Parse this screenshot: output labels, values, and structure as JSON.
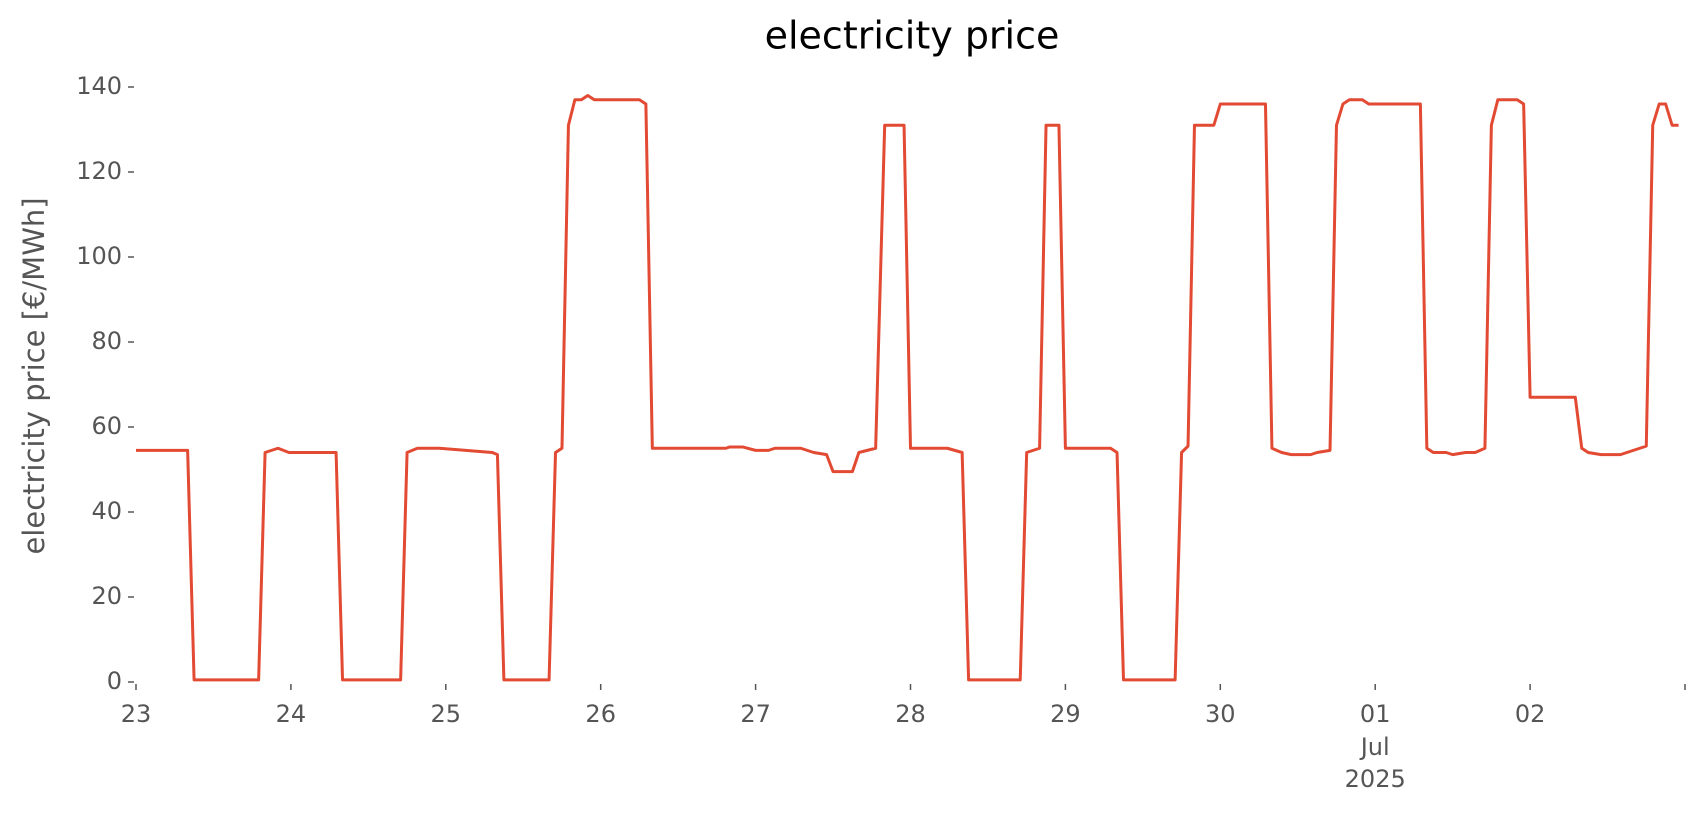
{
  "chart_data": {
    "type": "line",
    "title": "electricity price",
    "ylabel": "electricity price [€/MWh]",
    "color": "#e24a33",
    "x": [
      0,
      8,
      9,
      19,
      20,
      22,
      23.7,
      31,
      32,
      41,
      42,
      43.6,
      47,
      55.2,
      56,
      57,
      64,
      65,
      66,
      67,
      68,
      69,
      70,
      71,
      78,
      79,
      80,
      91.4,
      92,
      94,
      96,
      98,
      99,
      103,
      105,
      107,
      108,
      111,
      112,
      114.6,
      116,
      119,
      120,
      125.7,
      128,
      129,
      137,
      138,
      140,
      141,
      143,
      144,
      151,
      152,
      153,
      161,
      162,
      163,
      164,
      167,
      168,
      175,
      176,
      177.5,
      179,
      182,
      183,
      185,
      186,
      187,
      188,
      190,
      191,
      199,
      200,
      201,
      203,
      204,
      206,
      207.5,
      209,
      210,
      211,
      214,
      215,
      216,
      223,
      224,
      225,
      227,
      230,
      232,
      234,
      235,
      236,
      237,
      238,
      239
    ],
    "values": [
      54.5,
      54.5,
      0.5,
      0.5,
      54,
      55,
      54,
      54,
      0.5,
      0.5,
      54,
      55,
      55,
      54,
      53.5,
      0.5,
      0.5,
      54,
      55,
      131,
      137,
      137,
      138,
      137,
      137,
      136,
      55,
      55,
      55.3,
      55.3,
      54.5,
      54.5,
      55,
      55,
      54,
      53.5,
      49.5,
      49.5,
      54,
      55,
      131,
      131,
      55,
      55,
      54,
      0.5,
      0.5,
      54,
      55,
      131,
      131,
      55,
      55,
      54,
      0.5,
      0.5,
      54,
      55.5,
      131,
      131,
      136,
      136,
      55,
      54,
      53.5,
      53.5,
      54,
      54.5,
      131,
      136,
      137,
      137,
      136,
      136,
      55,
      54,
      54,
      53.5,
      54,
      54,
      55,
      131,
      137,
      137,
      136,
      67,
      67,
      55,
      54,
      53.5,
      53.5,
      54.5,
      55.5,
      131,
      136,
      136,
      131,
      131
    ],
    "xlim": [
      0,
      240
    ],
    "xticks": [
      {
        "value": 0,
        "label": "23"
      },
      {
        "value": 24,
        "label": "24"
      },
      {
        "value": 48,
        "label": "25"
      },
      {
        "value": 72,
        "label": "26"
      },
      {
        "value": 96,
        "label": "27"
      },
      {
        "value": 120,
        "label": "28"
      },
      {
        "value": 144,
        "label": "29"
      },
      {
        "value": 168,
        "label": "30"
      },
      {
        "value": 192,
        "label": "01"
      },
      {
        "value": 216,
        "label": "02"
      },
      {
        "value": 240,
        "label": null
      }
    ],
    "x_month": "Jul",
    "x_year": "2025",
    "ylim": [
      0,
      140
    ],
    "yticks": [
      0,
      20,
      40,
      60,
      80,
      100,
      120,
      140
    ],
    "grid": false
  }
}
